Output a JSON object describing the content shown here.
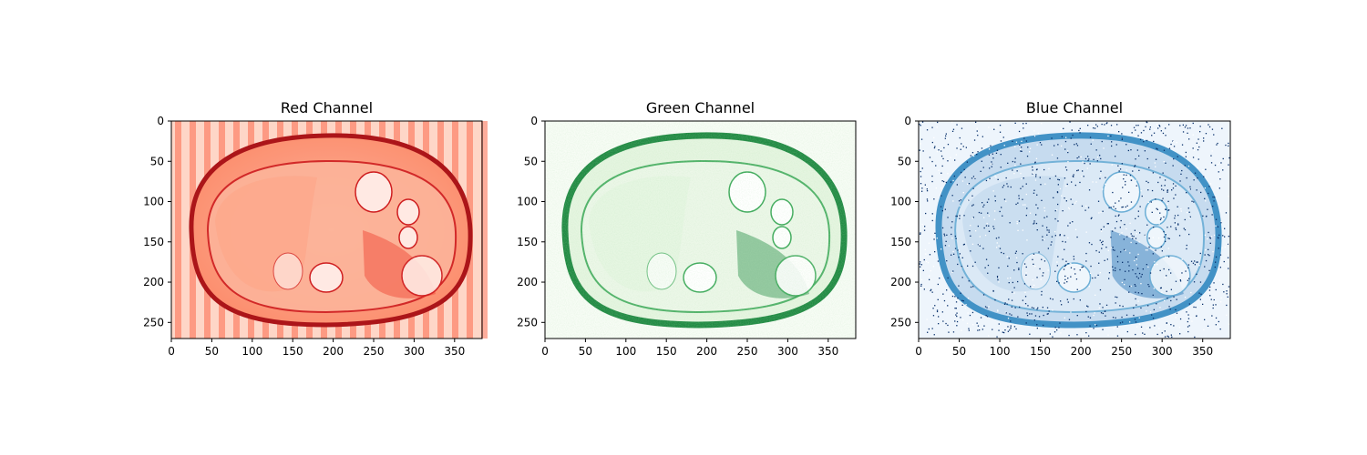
{
  "chart_data": [
    {
      "type": "heatmap",
      "title": "Red Channel",
      "colormap": "Reds",
      "image_shape": [
        270,
        384
      ],
      "xlim": [
        0,
        384
      ],
      "ylim": [
        270,
        0
      ],
      "xticks": [
        0,
        50,
        100,
        150,
        200,
        250,
        300,
        350
      ],
      "yticks": [
        0,
        50,
        100,
        150,
        200,
        250
      ],
      "artifact": "vertical stripes",
      "colors": {
        "low": "#fff5f0",
        "mid": "#fb6a4a",
        "high": "#67000d"
      }
    },
    {
      "type": "heatmap",
      "title": "Green Channel",
      "colormap": "Greens",
      "image_shape": [
        270,
        384
      ],
      "xlim": [
        0,
        384
      ],
      "ylim": [
        270,
        0
      ],
      "xticks": [
        0,
        50,
        100,
        150,
        200,
        250,
        300,
        350
      ],
      "yticks": [
        0,
        50,
        100,
        150,
        200,
        250
      ],
      "artifact": "fine grain noise",
      "colors": {
        "low": "#f7fcf5",
        "mid": "#74c476",
        "high": "#00441b"
      }
    },
    {
      "type": "heatmap",
      "title": "Blue Channel",
      "colormap": "Blues",
      "image_shape": [
        270,
        384
      ],
      "xlim": [
        0,
        384
      ],
      "ylim": [
        270,
        0
      ],
      "xticks": [
        0,
        50,
        100,
        150,
        200,
        250,
        300,
        350
      ],
      "yticks": [
        0,
        50,
        100,
        150,
        200,
        250
      ],
      "artifact": "salt and pepper noise",
      "colors": {
        "low": "#f7fbff",
        "mid": "#6baed6",
        "high": "#08306b"
      }
    }
  ]
}
